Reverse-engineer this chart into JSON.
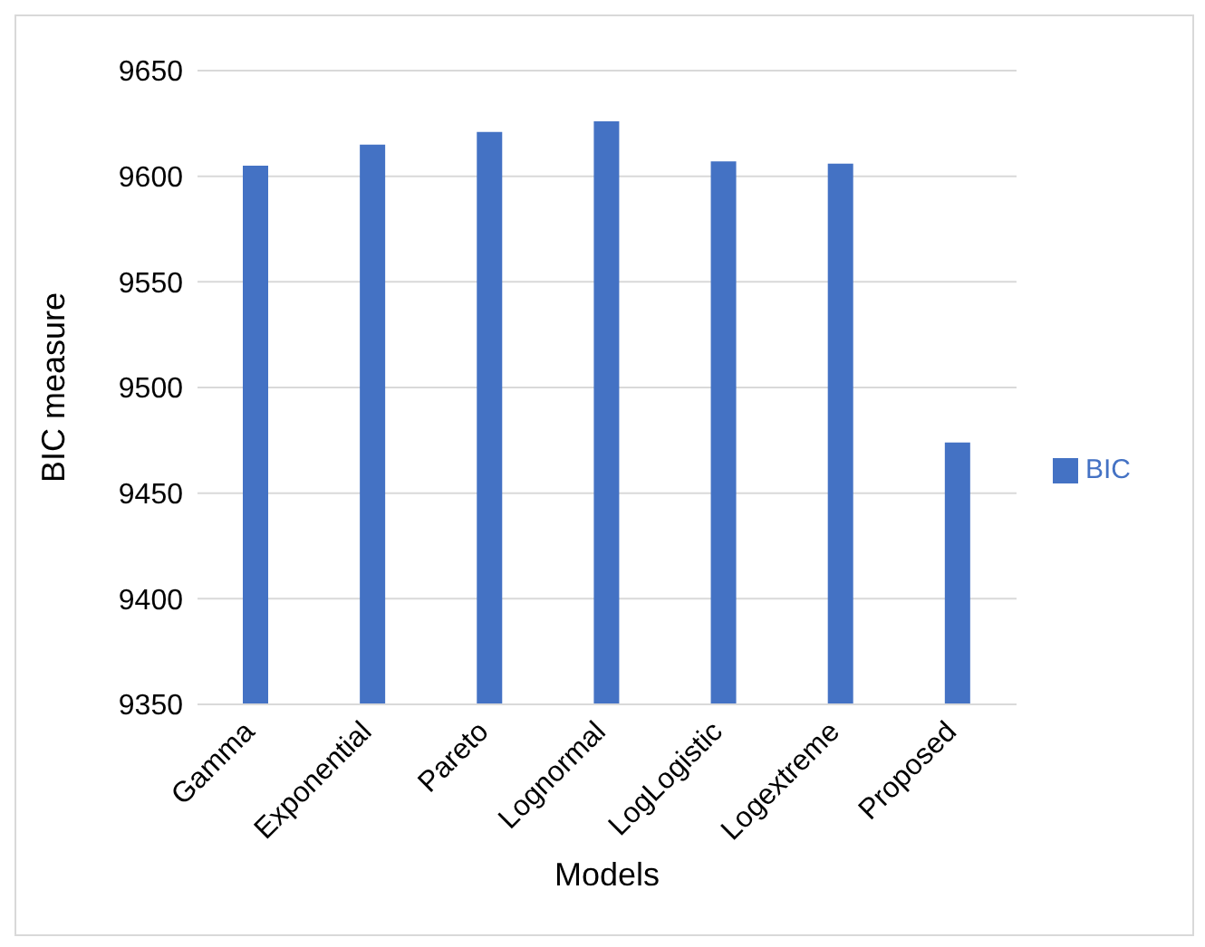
{
  "chart_data": {
    "type": "bar",
    "xlabel": "Models",
    "ylabel": "BIC measure",
    "categories": [
      "Gamma",
      "Exponential",
      "Pareto",
      "Lognormal",
      "LogLogistic",
      "Logextreme",
      "Proposed"
    ],
    "series": [
      {
        "name": "BIC",
        "color": "#4472c4",
        "values": [
          9605,
          9615,
          9621,
          9626,
          9607,
          9606,
          9474
        ]
      }
    ],
    "ylim": [
      9350,
      9650
    ],
    "yticks": [
      9350,
      9400,
      9450,
      9500,
      9550,
      9600,
      9650
    ],
    "grid": "y",
    "legend": "right"
  }
}
